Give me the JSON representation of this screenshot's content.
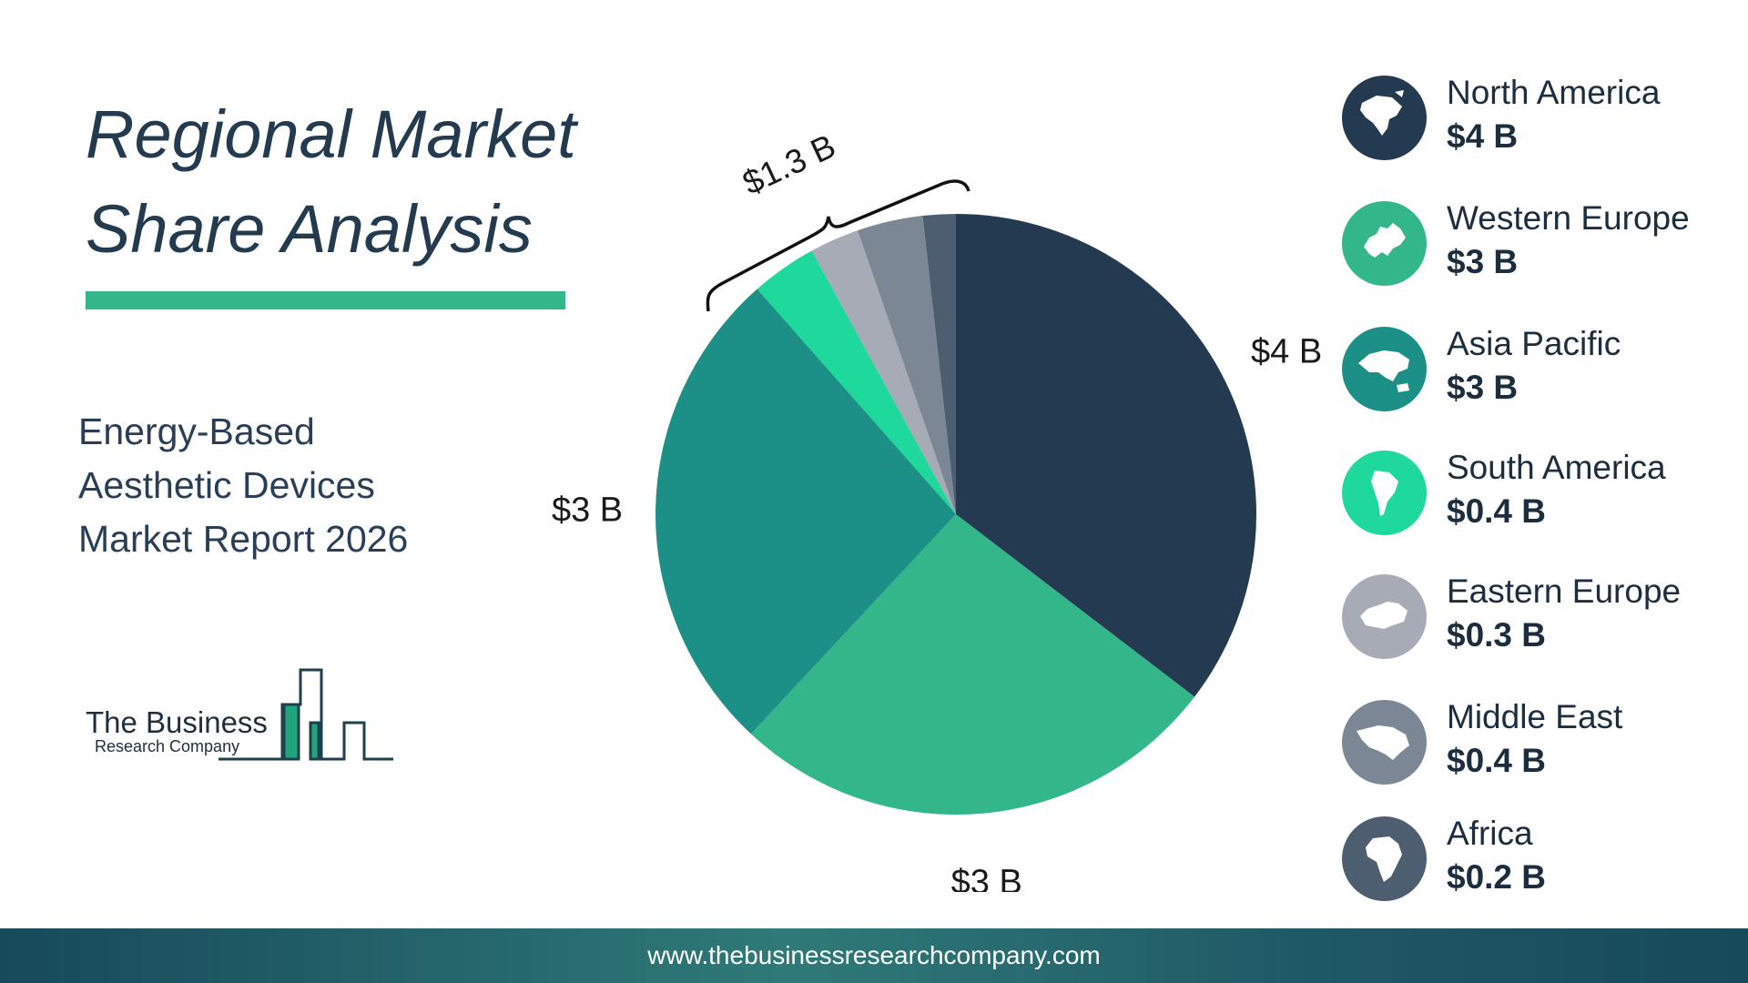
{
  "header": {
    "title_line1": "Regional Market",
    "title_line2": "Share Analysis",
    "subtitle_line1": "Energy-Based",
    "subtitle_line2": "Aesthetic Devices",
    "subtitle_line3": "Market Report 2026"
  },
  "logo": {
    "line1": "The Business",
    "line2": "Research Company",
    "icon": "bar-building-icon"
  },
  "colors": {
    "accent": "#33b78a",
    "dark": "#243a50"
  },
  "chart_data": {
    "type": "pie",
    "slices": [
      {
        "name": "North America",
        "value": 4,
        "label": "$4 B",
        "color": "#243a50"
      },
      {
        "name": "Western Europe",
        "value": 3,
        "label": "$3 B",
        "color": "#33b78a"
      },
      {
        "name": "Asia Pacific",
        "value": 3,
        "label": "$3 B",
        "color": "#1c8f87"
      },
      {
        "name": "South America",
        "value": 0.4,
        "label": "",
        "color": "#1fd89c"
      },
      {
        "name": "Eastern Europe",
        "value": 0.3,
        "label": "",
        "color": "#a6abb6"
      },
      {
        "name": "Middle East",
        "value": 0.4,
        "label": "",
        "color": "#7c8795"
      },
      {
        "name": "Africa",
        "value": 0.2,
        "label": "",
        "color": "#4d5e71"
      }
    ],
    "grouped_label": "$1.3 B",
    "direction": "clockwise from top"
  },
  "legend": [
    {
      "name": "North America",
      "value": "$4 B",
      "color": "#243a50",
      "icon": "north-america-map-icon"
    },
    {
      "name": "Western Europe",
      "value": "$3 B",
      "color": "#33b78a",
      "icon": "western-europe-map-icon"
    },
    {
      "name": "Asia Pacific",
      "value": "$3 B",
      "color": "#1c8f87",
      "icon": "asia-pacific-map-icon"
    },
    {
      "name": "South America",
      "value": "$0.4 B",
      "color": "#1fd89c",
      "icon": "south-america-map-icon"
    },
    {
      "name": "Eastern Europe",
      "value": "$0.3 B",
      "color": "#a6abb6",
      "icon": "eastern-europe-map-icon"
    },
    {
      "name": "Middle East",
      "value": "$0.4 B",
      "color": "#7c8795",
      "icon": "middle-east-map-icon"
    },
    {
      "name": "Africa",
      "value": "$0.2 B",
      "color": "#4d5e71",
      "icon": "africa-map-icon"
    }
  ],
  "footer": {
    "url": "www.thebusinessresearchcompany.com"
  }
}
